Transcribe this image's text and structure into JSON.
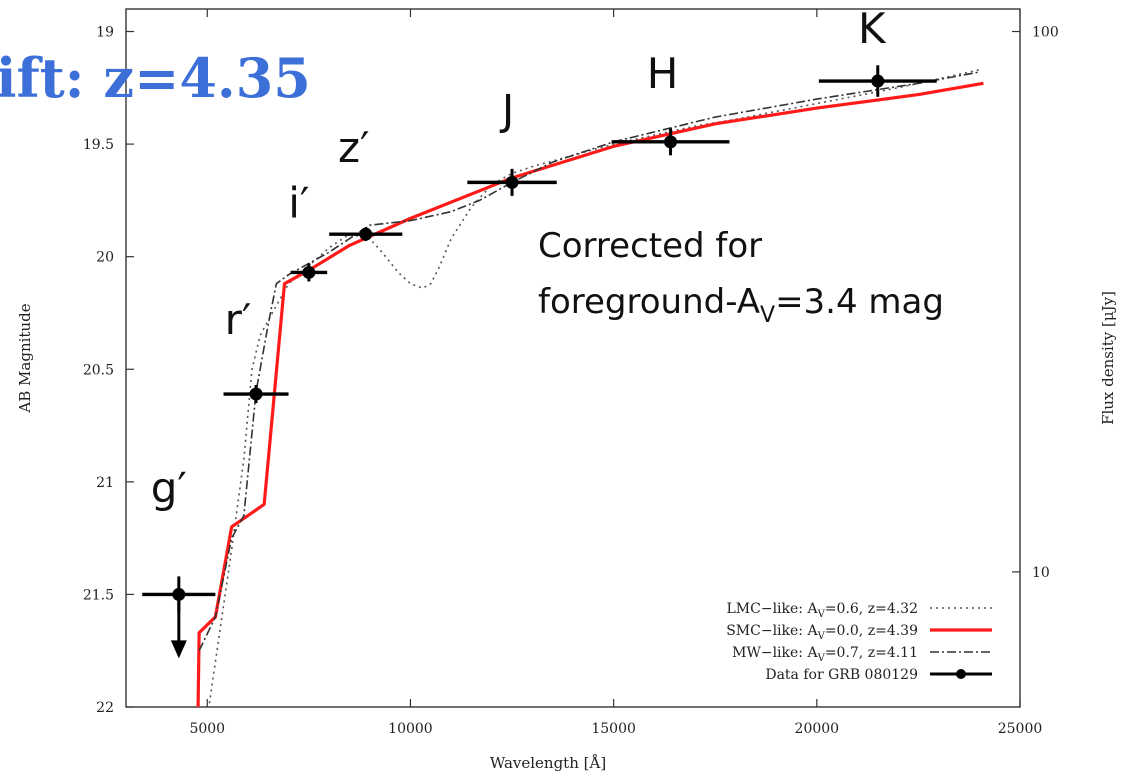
{
  "headline": "ift: z=4.35",
  "note": {
    "line1": "Corrected for",
    "line2_pre": "foreground-A",
    "line2_sub": "V",
    "line2_post": "=3.4 mag"
  },
  "chart_data": {
    "type": "scatter",
    "xlabel": "Wavelength [Å]",
    "ylabel": "AB Magnitude",
    "y2label": "Flux density [μJy]",
    "xlim": [
      3000,
      25000
    ],
    "ylim": [
      22,
      18.9
    ],
    "y_inverted": true,
    "x_ticks": [
      5000,
      10000,
      15000,
      20000,
      25000
    ],
    "y_ticks": [
      19,
      19.5,
      20,
      20.5,
      21,
      21.5,
      22
    ],
    "y2_ticks": [
      {
        "label": "100",
        "mag": 19.0
      },
      {
        "label": "10",
        "mag": 21.4
      }
    ],
    "grid": false,
    "legend_position": "bottom-right",
    "data_points": [
      {
        "band": "g′",
        "x": 4300,
        "xerr": 900,
        "y": 21.5,
        "yerr": 0.08,
        "upper_limit": true
      },
      {
        "band": "r′",
        "x": 6200,
        "xerr": 800,
        "y": 20.61,
        "yerr": 0.04
      },
      {
        "band": "i′",
        "x": 7500,
        "xerr": 450,
        "y": 20.07,
        "yerr": 0.04
      },
      {
        "band": "z′",
        "x": 8900,
        "xerr": 900,
        "y": 19.9,
        "yerr": 0.03
      },
      {
        "band": "J",
        "x": 12500,
        "xerr": 1100,
        "y": 19.67,
        "yerr": 0.06
      },
      {
        "band": "H",
        "x": 16400,
        "xerr": 1450,
        "y": 19.49,
        "yerr": 0.06
      },
      {
        "band": "K",
        "x": 21500,
        "xerr": 1450,
        "y": 19.22,
        "yerr": 0.07
      }
    ],
    "series": [
      {
        "name": "LMC−like: A_V=0.6, z=4.32",
        "legend_pre": "LMC−like: A",
        "legend_sub": "V",
        "legend_post": "=0.6, z=4.32",
        "color": "#555555",
        "dash": "dotted",
        "x": [
          4800,
          5200,
          5600,
          5900,
          6100,
          6300,
          6600,
          7000,
          7500,
          8000,
          8500,
          9000,
          9300,
          9700,
          10000,
          10300,
          10500,
          10700,
          11000,
          11500,
          12000,
          12500,
          13000,
          14000,
          15000,
          16000,
          17000,
          18000,
          20000,
          22000,
          24000
        ],
        "y": [
          22.3,
          21.8,
          21.3,
          20.9,
          20.5,
          20.35,
          20.25,
          20.12,
          20.04,
          19.96,
          19.9,
          19.92,
          19.98,
          20.07,
          20.12,
          20.14,
          20.12,
          20.05,
          19.92,
          19.78,
          19.68,
          19.63,
          19.6,
          19.55,
          19.5,
          19.46,
          19.42,
          19.39,
          19.32,
          19.25,
          19.17
        ]
      },
      {
        "name": "SMC−like: A_V=0.0, z=4.39",
        "legend_pre": "SMC−like: A",
        "legend_sub": "V",
        "legend_post": "=0.0, z=4.39",
        "color": "#ff1a1a",
        "dash": "solid",
        "x": [
          4750,
          4800,
          5200,
          5600,
          6400,
          6900,
          7500,
          8500,
          10000,
          12500,
          15000,
          17500,
          20000,
          22500,
          24100
        ],
        "y": [
          22.3,
          21.67,
          21.6,
          21.2,
          21.1,
          20.12,
          20.06,
          19.95,
          19.83,
          19.65,
          19.51,
          19.41,
          19.34,
          19.28,
          19.23
        ]
      },
      {
        "name": "MW−like: A_V=0.7, z=4.11",
        "legend_pre": "MW−like: A",
        "legend_sub": "V",
        "legend_post": "=0.7, z=4.11",
        "color": "#333333",
        "dash": "dashdot",
        "x": [
          4800,
          5200,
          5600,
          5900,
          6200,
          6500,
          6700,
          7000,
          7500,
          8000,
          9000,
          10000,
          11000,
          11700,
          12500,
          13500,
          15000,
          17500,
          20000,
          22500,
          24000
        ],
        "y": [
          21.75,
          21.6,
          21.25,
          21.15,
          20.6,
          20.3,
          20.12,
          20.08,
          20.03,
          19.98,
          19.86,
          19.84,
          19.8,
          19.75,
          19.67,
          19.58,
          19.49,
          19.38,
          19.3,
          19.23,
          19.18
        ]
      }
    ],
    "data_legend": "Data for GRB 080129"
  }
}
